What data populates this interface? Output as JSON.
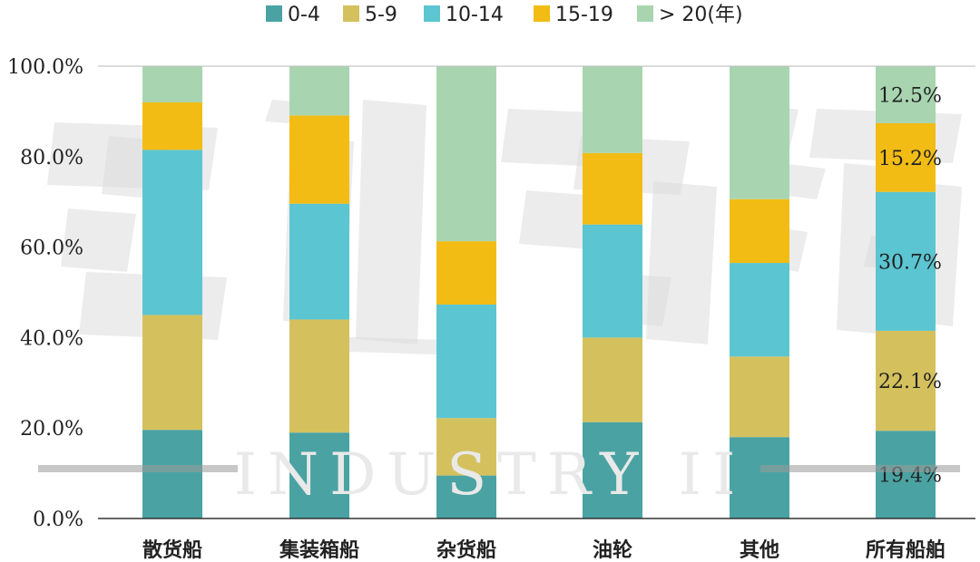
{
  "chart_data": {
    "type": "bar",
    "stacked": true,
    "categories": [
      "散货船",
      "集装箱船",
      "杂货船",
      "油轮",
      "其他",
      "所有船舶"
    ],
    "series": [
      {
        "name": "0-4",
        "color": "#4AA3A2",
        "values": [
          19.6,
          19.0,
          9.5,
          21.3,
          18.0,
          19.4
        ]
      },
      {
        "name": "5-9",
        "color": "#D4C15E",
        "values": [
          25.4,
          25.0,
          12.7,
          18.7,
          17.8,
          22.1
        ]
      },
      {
        "name": "10-14",
        "color": "#5BC5D1",
        "values": [
          36.5,
          25.6,
          25.1,
          25.0,
          20.7,
          30.7
        ]
      },
      {
        "name": "15-19",
        "color": "#F2BC14",
        "values": [
          10.5,
          19.5,
          14.0,
          15.8,
          14.1,
          15.2
        ]
      },
      {
        "name": "> 20(年)",
        "color": "#A8D5B0",
        "values": [
          8.0,
          10.9,
          38.7,
          19.2,
          29.4,
          12.5
        ]
      }
    ],
    "data_labels": {
      "category": "所有船舶",
      "labels": [
        "19.4%",
        "22.1%",
        "30.7%",
        "15.2%",
        "12.5%"
      ]
    },
    "yticks": [
      "0.0%",
      "20.0%",
      "40.0%",
      "60.0%",
      "80.0%",
      "100.0%"
    ],
    "ylim": [
      0,
      100
    ],
    "grid": false,
    "legend_position": "top"
  },
  "watermark": {
    "text": "INDUSTRY II"
  }
}
